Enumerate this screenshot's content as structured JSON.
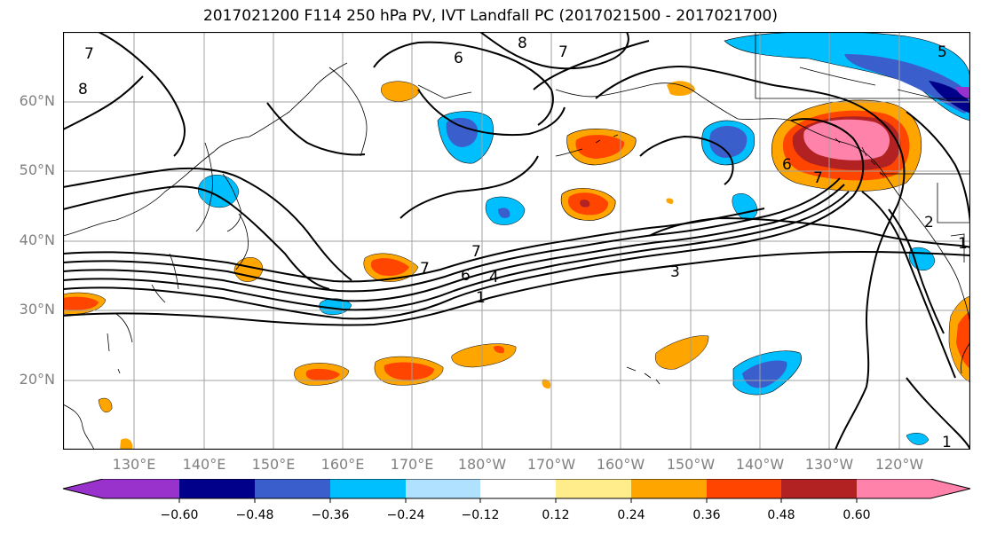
{
  "title": "2017021200 F114 250 hPa PV, IVT Landfall PC (2017021500 - 2017021700)",
  "lat_labels": [
    "60°N",
    "50°N",
    "40°N",
    "30°N",
    "20°N"
  ],
  "lon_labels": [
    "130°E",
    "140°E",
    "150°E",
    "160°E",
    "170°E",
    "180°W",
    "170°W",
    "160°W",
    "150°W",
    "140°W",
    "130°W",
    "120°W"
  ],
  "colorbar": {
    "tick_labels": [
      "−0.60",
      "−0.48",
      "−0.36",
      "−0.24",
      "−0.12",
      "0.12",
      "0.24",
      "0.36",
      "0.48",
      "0.60"
    ],
    "colors": [
      "#9932cc",
      "#00008b",
      "#3a5fcd",
      "#00bfff",
      "#b0e2ff",
      "#ffffff",
      "#ffec8b",
      "#ffa500",
      "#ff4500",
      "#b22222",
      "#ff82ab"
    ]
  },
  "contour_labels": [
    "7",
    "8",
    "6",
    "8",
    "7",
    "5",
    "6",
    "7",
    "7",
    "6",
    "4",
    "3",
    "1",
    "7",
    "2",
    "1",
    "1"
  ],
  "colors": {
    "pos_light": "#ffec8b",
    "pos_mid": "#ffa500",
    "pos_strong": "#ff4500",
    "pos_darker": "#b22222",
    "pos_max": "#ff82ab",
    "neg_light": "#b0e2ff",
    "neg_mid": "#00bfff",
    "neg_strong": "#3a5fcd",
    "neg_darker": "#00008b",
    "neg_max": "#9932cc"
  }
}
